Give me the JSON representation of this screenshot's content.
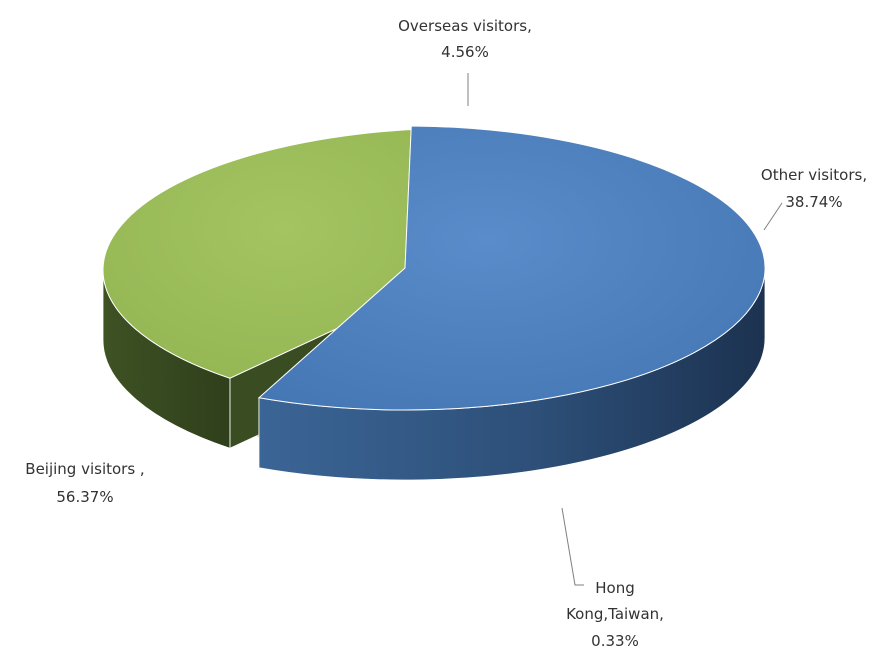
{
  "chart_data": {
    "type": "pie",
    "style": "3d-exploded",
    "slices": [
      {
        "name": "Beijing visitors",
        "label_line1": "Beijing visitors ,",
        "value_label": "56.37%",
        "value": 56.37,
        "color": "#4f81bd"
      },
      {
        "name": "Overseas visitors",
        "label_line1": "Overseas visitors,",
        "value_label": "4.56%",
        "value": 4.56,
        "color": "#c0504d"
      },
      {
        "name": "Other visitors",
        "label_line1": "Other visitors,",
        "value_label": "38.74%",
        "value": 38.74,
        "color": "#9bbb59"
      },
      {
        "name": "Hong Kong,Taiwan",
        "label_line1": "Hong",
        "label_line2": "Kong,Taiwan,",
        "value_label": "0.33%",
        "value": 0.33,
        "color": "#8064a2"
      }
    ],
    "legend": "none"
  }
}
